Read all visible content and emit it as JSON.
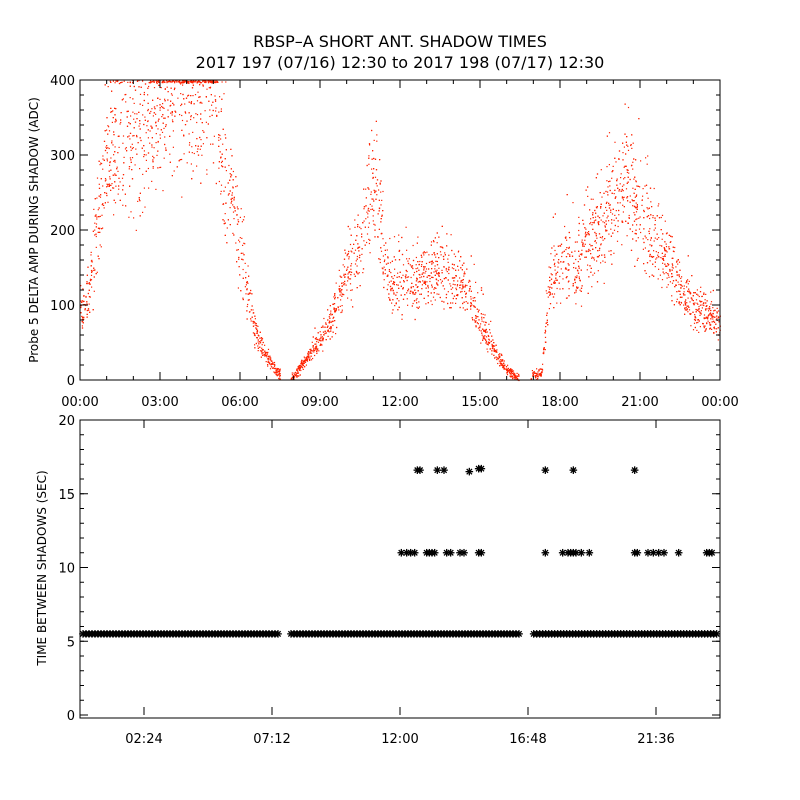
{
  "title_line1": "RBSP–A SHORT ANT. SHADOW TIMES",
  "title_line2": "2017 197 (07/16) 12:30 to 2017 198 (07/17) 12:30",
  "chart_data": [
    {
      "type": "scatter",
      "ylabel": "Probe 5 DELTA AMP DURING SHADOW (ADC)",
      "xlabel": "",
      "x_units": "hours (00:00 to 24:00)",
      "xlim": [
        0,
        24
      ],
      "ylim": [
        0,
        400
      ],
      "x_ticks": [
        "00:00",
        "03:00",
        "06:00",
        "09:00",
        "12:00",
        "15:00",
        "18:00",
        "21:00",
        "00:00"
      ],
      "y_ticks": [
        "0",
        "100",
        "200",
        "300",
        "400"
      ],
      "color": "#ff2200",
      "grid": false,
      "envelope": {
        "x": [
          0,
          0.3,
          0.6,
          1.0,
          1.5,
          2.0,
          2.5,
          3.0,
          3.5,
          4.0,
          4.5,
          5.0,
          5.3,
          5.6,
          6.0,
          6.3,
          6.6,
          7.0,
          7.4,
          7.7,
          8.0,
          8.5,
          9.0,
          9.5,
          10.0,
          10.5,
          10.8,
          11.1,
          11.3,
          11.6,
          12.0,
          12.5,
          13.0,
          13.5,
          14.0,
          14.5,
          15.0,
          15.5,
          16.0,
          16.3,
          16.5,
          17.0,
          17.3,
          17.6,
          18.0,
          18.3,
          18.6,
          19.0,
          19.5,
          20.0,
          20.5,
          21.0,
          21.5,
          22.0,
          22.5,
          23.0,
          23.5,
          24.0
        ],
        "y": [
          80,
          110,
          200,
          290,
          310,
          330,
          350,
          365,
          375,
          385,
          390,
          390,
          300,
          250,
          170,
          110,
          60,
          30,
          10,
          3,
          5,
          30,
          55,
          90,
          140,
          180,
          230,
          270,
          190,
          130,
          125,
          135,
          140,
          145,
          140,
          120,
          80,
          40,
          15,
          5,
          3,
          8,
          10,
          130,
          150,
          160,
          140,
          180,
          200,
          240,
          260,
          230,
          190,
          160,
          130,
          100,
          90,
          75
        ]
      },
      "gaps": [
        [
          7.5,
          7.9
        ],
        [
          16.45,
          16.9
        ]
      ]
    },
    {
      "type": "scatter",
      "ylabel": "TIME BETWEEN SHADOWS (SEC)",
      "xlabel": "",
      "marker": "asterisk",
      "xlim": [
        0,
        24
      ],
      "ylim": [
        0,
        20
      ],
      "x_ticks": [
        "02:24",
        "07:12",
        "12:00",
        "16:48",
        "21:36"
      ],
      "y_ticks": [
        "0",
        "5",
        "10",
        "15",
        "20"
      ],
      "color": "#000000",
      "grid": false,
      "baseline": {
        "y": 5.5,
        "x_ranges": [
          [
            0,
            7.6
          ],
          [
            7.8,
            16.6
          ],
          [
            16.9,
            24
          ]
        ]
      },
      "points": [
        {
          "x": 12.05,
          "y": 11
        },
        {
          "x": 12.25,
          "y": 11
        },
        {
          "x": 12.4,
          "y": 11
        },
        {
          "x": 12.55,
          "y": 11
        },
        {
          "x": 13.0,
          "y": 11
        },
        {
          "x": 13.1,
          "y": 11
        },
        {
          "x": 13.2,
          "y": 11
        },
        {
          "x": 13.3,
          "y": 11
        },
        {
          "x": 13.75,
          "y": 11
        },
        {
          "x": 13.9,
          "y": 11
        },
        {
          "x": 14.25,
          "y": 11
        },
        {
          "x": 14.4,
          "y": 11
        },
        {
          "x": 14.95,
          "y": 11
        },
        {
          "x": 15.05,
          "y": 11
        },
        {
          "x": 17.45,
          "y": 11
        },
        {
          "x": 18.1,
          "y": 11
        },
        {
          "x": 18.3,
          "y": 11
        },
        {
          "x": 18.4,
          "y": 11
        },
        {
          "x": 18.5,
          "y": 11
        },
        {
          "x": 18.6,
          "y": 11
        },
        {
          "x": 18.8,
          "y": 11
        },
        {
          "x": 19.1,
          "y": 11
        },
        {
          "x": 20.8,
          "y": 11
        },
        {
          "x": 20.9,
          "y": 11
        },
        {
          "x": 21.3,
          "y": 11
        },
        {
          "x": 21.5,
          "y": 11
        },
        {
          "x": 21.7,
          "y": 11
        },
        {
          "x": 21.9,
          "y": 11
        },
        {
          "x": 22.45,
          "y": 11
        },
        {
          "x": 23.5,
          "y": 11
        },
        {
          "x": 23.6,
          "y": 11
        },
        {
          "x": 23.7,
          "y": 11
        },
        {
          "x": 12.65,
          "y": 16.6
        },
        {
          "x": 12.75,
          "y": 16.6
        },
        {
          "x": 13.4,
          "y": 16.6
        },
        {
          "x": 13.65,
          "y": 16.6
        },
        {
          "x": 14.6,
          "y": 16.5
        },
        {
          "x": 14.95,
          "y": 16.7
        },
        {
          "x": 15.05,
          "y": 16.7
        },
        {
          "x": 17.45,
          "y": 16.6
        },
        {
          "x": 18.5,
          "y": 16.6
        },
        {
          "x": 20.8,
          "y": 16.6
        }
      ]
    }
  ]
}
